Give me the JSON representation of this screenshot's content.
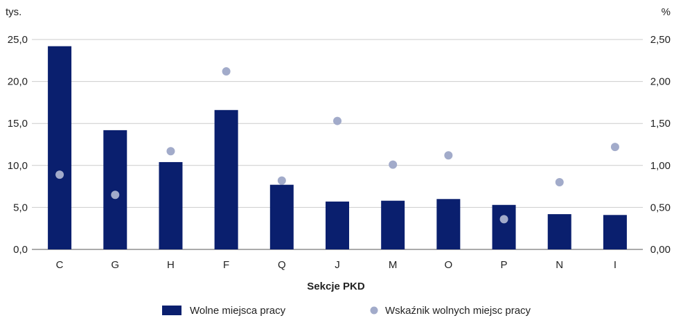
{
  "chart_data": {
    "type": "bar",
    "categories": [
      "C",
      "G",
      "H",
      "F",
      "Q",
      "J",
      "M",
      "O",
      "P",
      "N",
      "I"
    ],
    "series": [
      {
        "name": "Wolne miejsca pracy",
        "kind": "bar",
        "axis": "left",
        "color": "#0a1f6e",
        "values": [
          24.2,
          14.2,
          10.4,
          16.6,
          7.7,
          5.7,
          5.8,
          6.0,
          5.3,
          4.2,
          4.1
        ]
      },
      {
        "name": "Wskaźnik wolnych miejsc pracy",
        "kind": "scatter",
        "axis": "right",
        "color": "#a2abca",
        "values": [
          0.89,
          0.65,
          1.17,
          2.12,
          0.82,
          1.53,
          1.01,
          1.12,
          0.36,
          0.8,
          1.22
        ]
      }
    ],
    "left_axis": {
      "unit": "tys.",
      "ylim": [
        0,
        25
      ],
      "ticks": [
        0,
        5,
        10,
        15,
        20,
        25
      ],
      "tick_labels": [
        "0,0",
        "5,0",
        "10,0",
        "15,0",
        "20,0",
        "25,0"
      ]
    },
    "right_axis": {
      "unit": "%",
      "ylim": [
        0,
        2.5
      ],
      "ticks": [
        0,
        0.5,
        1,
        1.5,
        2,
        2.5
      ],
      "tick_labels": [
        "0,00",
        "0,50",
        "1,00",
        "1,50",
        "2,00",
        "2,50"
      ]
    },
    "xlabel": "Sekcje PKD",
    "grid": true,
    "legend_position": "bottom"
  }
}
